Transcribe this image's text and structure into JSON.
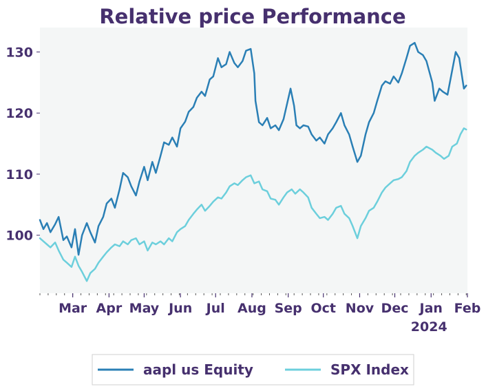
{
  "chart_data": {
    "type": "line",
    "title": "Relative price Performance",
    "xlabel": "",
    "ylabel": "",
    "x_range": [
      "2023-02-01",
      "2024-02-01"
    ],
    "ylim": [
      90.5,
      134
    ],
    "y_ticks": [
      100,
      110,
      120,
      130
    ],
    "x_ticks": [
      {
        "date": "2023-03-01",
        "label": "Mar",
        "sublabel": ""
      },
      {
        "date": "2023-04-01",
        "label": "Apr",
        "sublabel": ""
      },
      {
        "date": "2023-05-01",
        "label": "May",
        "sublabel": ""
      },
      {
        "date": "2023-06-01",
        "label": "Jun",
        "sublabel": ""
      },
      {
        "date": "2023-07-01",
        "label": "Jul",
        "sublabel": ""
      },
      {
        "date": "2023-08-01",
        "label": "Aug",
        "sublabel": ""
      },
      {
        "date": "2023-09-01",
        "label": "Sep",
        "sublabel": ""
      },
      {
        "date": "2023-10-01",
        "label": "Oct",
        "sublabel": ""
      },
      {
        "date": "2023-11-01",
        "label": "Nov",
        "sublabel": ""
      },
      {
        "date": "2023-12-01",
        "label": "Dec",
        "sublabel": ""
      },
      {
        "date": "2024-01-01",
        "label": "Jan",
        "sublabel": "2024"
      },
      {
        "date": "2024-02-01",
        "label": "Feb",
        "sublabel": ""
      }
    ],
    "grid": false,
    "legend_position": "bottom-center",
    "background": "#f4f6f6",
    "series": [
      {
        "name": "aapl us Equity",
        "color": "#2a7fb5",
        "points": [
          [
            "2023-02-01",
            102.5
          ],
          [
            "2023-02-04",
            101.0
          ],
          [
            "2023-02-07",
            102.0
          ],
          [
            "2023-02-10",
            100.5
          ],
          [
            "2023-02-14",
            101.8
          ],
          [
            "2023-02-17",
            103.0
          ],
          [
            "2023-02-21",
            99.2
          ],
          [
            "2023-02-24",
            99.8
          ],
          [
            "2023-02-28",
            98.0
          ],
          [
            "2023-03-03",
            101.0
          ],
          [
            "2023-03-06",
            96.8
          ],
          [
            "2023-03-09",
            100.0
          ],
          [
            "2023-03-13",
            102.0
          ],
          [
            "2023-03-16",
            100.5
          ],
          [
            "2023-03-20",
            98.8
          ],
          [
            "2023-03-23",
            101.5
          ],
          [
            "2023-03-27",
            103.0
          ],
          [
            "2023-03-30",
            105.2
          ],
          [
            "2023-04-03",
            106.0
          ],
          [
            "2023-04-06",
            104.5
          ],
          [
            "2023-04-10",
            107.5
          ],
          [
            "2023-04-13",
            110.2
          ],
          [
            "2023-04-17",
            109.5
          ],
          [
            "2023-04-20",
            108.0
          ],
          [
            "2023-04-24",
            106.5
          ],
          [
            "2023-04-27",
            108.8
          ],
          [
            "2023-05-01",
            111.2
          ],
          [
            "2023-05-04",
            109.0
          ],
          [
            "2023-05-08",
            112.0
          ],
          [
            "2023-05-11",
            110.2
          ],
          [
            "2023-05-15",
            113.0
          ],
          [
            "2023-05-18",
            115.2
          ],
          [
            "2023-05-22",
            114.8
          ],
          [
            "2023-05-25",
            116.0
          ],
          [
            "2023-05-29",
            114.5
          ],
          [
            "2023-06-01",
            117.5
          ],
          [
            "2023-06-05",
            118.6
          ],
          [
            "2023-06-08",
            120.2
          ],
          [
            "2023-06-12",
            121.0
          ],
          [
            "2023-06-15",
            122.5
          ],
          [
            "2023-06-19",
            123.5
          ],
          [
            "2023-06-22",
            122.8
          ],
          [
            "2023-06-26",
            125.5
          ],
          [
            "2023-06-29",
            126.0
          ],
          [
            "2023-07-03",
            129.0
          ],
          [
            "2023-07-06",
            127.5
          ],
          [
            "2023-07-10",
            128.0
          ],
          [
            "2023-07-13",
            130.0
          ],
          [
            "2023-07-17",
            128.2
          ],
          [
            "2023-07-20",
            127.5
          ],
          [
            "2023-07-24",
            128.5
          ],
          [
            "2023-07-27",
            130.2
          ],
          [
            "2023-07-31",
            130.5
          ],
          [
            "2023-08-03",
            126.5
          ],
          [
            "2023-08-04",
            122.0
          ],
          [
            "2023-08-07",
            118.5
          ],
          [
            "2023-08-10",
            118.0
          ],
          [
            "2023-08-14",
            119.2
          ],
          [
            "2023-08-17",
            117.5
          ],
          [
            "2023-08-21",
            118.0
          ],
          [
            "2023-08-24",
            117.2
          ],
          [
            "2023-08-28",
            119.0
          ],
          [
            "2023-08-31",
            121.5
          ],
          [
            "2023-09-03",
            124.0
          ],
          [
            "2023-09-06",
            121.2
          ],
          [
            "2023-09-08",
            118.0
          ],
          [
            "2023-09-11",
            117.5
          ],
          [
            "2023-09-14",
            118.0
          ],
          [
            "2023-09-18",
            117.8
          ],
          [
            "2023-09-21",
            116.5
          ],
          [
            "2023-09-25",
            115.5
          ],
          [
            "2023-09-28",
            116.0
          ],
          [
            "2023-10-02",
            115.0
          ],
          [
            "2023-10-05",
            116.5
          ],
          [
            "2023-10-09",
            117.5
          ],
          [
            "2023-10-12",
            118.5
          ],
          [
            "2023-10-16",
            120.0
          ],
          [
            "2023-10-19",
            118.0
          ],
          [
            "2023-10-23",
            116.5
          ],
          [
            "2023-10-26",
            114.5
          ],
          [
            "2023-10-30",
            112.0
          ],
          [
            "2023-11-02",
            113.0
          ],
          [
            "2023-11-06",
            116.5
          ],
          [
            "2023-11-09",
            118.5
          ],
          [
            "2023-11-13",
            120.0
          ],
          [
            "2023-11-16",
            122.0
          ],
          [
            "2023-11-20",
            124.5
          ],
          [
            "2023-11-23",
            125.2
          ],
          [
            "2023-11-27",
            124.8
          ],
          [
            "2023-11-30",
            126.0
          ],
          [
            "2023-12-04",
            125.0
          ],
          [
            "2023-12-07",
            126.5
          ],
          [
            "2023-12-11",
            129.0
          ],
          [
            "2023-12-14",
            131.0
          ],
          [
            "2023-12-18",
            131.5
          ],
          [
            "2023-12-21",
            130.0
          ],
          [
            "2023-12-25",
            129.5
          ],
          [
            "2023-12-28",
            128.5
          ],
          [
            "2024-01-02",
            125.0
          ],
          [
            "2024-01-04",
            122.0
          ],
          [
            "2024-01-08",
            124.0
          ],
          [
            "2024-01-11",
            123.5
          ],
          [
            "2024-01-15",
            123.0
          ],
          [
            "2024-01-18",
            126.0
          ],
          [
            "2024-01-22",
            130.0
          ],
          [
            "2024-01-25",
            129.0
          ],
          [
            "2024-01-29",
            124.0
          ],
          [
            "2024-01-31",
            124.5
          ]
        ]
      },
      {
        "name": "SPX Index",
        "color": "#6ccfdc",
        "points": [
          [
            "2023-02-01",
            99.5
          ],
          [
            "2023-02-04",
            99.0
          ],
          [
            "2023-02-07",
            98.5
          ],
          [
            "2023-02-10",
            98.0
          ],
          [
            "2023-02-14",
            98.8
          ],
          [
            "2023-02-17",
            97.5
          ],
          [
            "2023-02-21",
            96.0
          ],
          [
            "2023-02-24",
            95.5
          ],
          [
            "2023-02-28",
            94.8
          ],
          [
            "2023-03-03",
            96.5
          ],
          [
            "2023-03-06",
            95.0
          ],
          [
            "2023-03-09",
            94.0
          ],
          [
            "2023-03-13",
            92.5
          ],
          [
            "2023-03-16",
            93.8
          ],
          [
            "2023-03-20",
            94.5
          ],
          [
            "2023-03-23",
            95.5
          ],
          [
            "2023-03-27",
            96.5
          ],
          [
            "2023-03-30",
            97.2
          ],
          [
            "2023-04-03",
            98.0
          ],
          [
            "2023-04-06",
            98.5
          ],
          [
            "2023-04-10",
            98.2
          ],
          [
            "2023-04-13",
            99.0
          ],
          [
            "2023-04-17",
            98.5
          ],
          [
            "2023-04-20",
            99.2
          ],
          [
            "2023-04-24",
            99.5
          ],
          [
            "2023-04-27",
            98.5
          ],
          [
            "2023-05-01",
            99.0
          ],
          [
            "2023-05-04",
            97.5
          ],
          [
            "2023-05-08",
            98.8
          ],
          [
            "2023-05-11",
            98.5
          ],
          [
            "2023-05-15",
            99.0
          ],
          [
            "2023-05-18",
            98.5
          ],
          [
            "2023-05-22",
            99.5
          ],
          [
            "2023-05-25",
            99.0
          ],
          [
            "2023-05-29",
            100.5
          ],
          [
            "2023-06-01",
            101.0
          ],
          [
            "2023-06-05",
            101.5
          ],
          [
            "2023-06-08",
            102.5
          ],
          [
            "2023-06-12",
            103.5
          ],
          [
            "2023-06-15",
            104.2
          ],
          [
            "2023-06-19",
            105.0
          ],
          [
            "2023-06-22",
            104.0
          ],
          [
            "2023-06-26",
            104.8
          ],
          [
            "2023-06-29",
            105.5
          ],
          [
            "2023-07-03",
            106.2
          ],
          [
            "2023-07-06",
            106.0
          ],
          [
            "2023-07-10",
            107.0
          ],
          [
            "2023-07-13",
            108.0
          ],
          [
            "2023-07-17",
            108.5
          ],
          [
            "2023-07-20",
            108.2
          ],
          [
            "2023-07-24",
            109.0
          ],
          [
            "2023-07-27",
            109.5
          ],
          [
            "2023-07-31",
            109.8
          ],
          [
            "2023-08-03",
            108.5
          ],
          [
            "2023-08-07",
            108.8
          ],
          [
            "2023-08-10",
            107.5
          ],
          [
            "2023-08-14",
            107.2
          ],
          [
            "2023-08-17",
            106.0
          ],
          [
            "2023-08-21",
            105.8
          ],
          [
            "2023-08-24",
            105.0
          ],
          [
            "2023-08-28",
            106.2
          ],
          [
            "2023-08-31",
            107.0
          ],
          [
            "2023-09-04",
            107.5
          ],
          [
            "2023-09-07",
            106.8
          ],
          [
            "2023-09-11",
            107.5
          ],
          [
            "2023-09-14",
            107.0
          ],
          [
            "2023-09-18",
            106.2
          ],
          [
            "2023-09-21",
            104.5
          ],
          [
            "2023-09-25",
            103.5
          ],
          [
            "2023-09-28",
            102.8
          ],
          [
            "2023-10-02",
            103.0
          ],
          [
            "2023-10-05",
            102.5
          ],
          [
            "2023-10-09",
            103.5
          ],
          [
            "2023-10-12",
            104.5
          ],
          [
            "2023-10-16",
            104.8
          ],
          [
            "2023-10-19",
            103.5
          ],
          [
            "2023-10-23",
            102.8
          ],
          [
            "2023-10-26",
            101.5
          ],
          [
            "2023-10-30",
            99.5
          ],
          [
            "2023-11-02",
            101.5
          ],
          [
            "2023-11-06",
            102.8
          ],
          [
            "2023-11-09",
            104.0
          ],
          [
            "2023-11-13",
            104.5
          ],
          [
            "2023-11-16",
            105.5
          ],
          [
            "2023-11-20",
            107.0
          ],
          [
            "2023-11-23",
            107.8
          ],
          [
            "2023-11-27",
            108.5
          ],
          [
            "2023-11-30",
            109.0
          ],
          [
            "2023-12-04",
            109.2
          ],
          [
            "2023-12-07",
            109.5
          ],
          [
            "2023-12-11",
            110.5
          ],
          [
            "2023-12-14",
            112.0
          ],
          [
            "2023-12-18",
            113.0
          ],
          [
            "2023-12-21",
            113.5
          ],
          [
            "2023-12-25",
            114.0
          ],
          [
            "2023-12-28",
            114.5
          ],
          [
            "2024-01-02",
            114.0
          ],
          [
            "2024-01-05",
            113.5
          ],
          [
            "2024-01-09",
            113.0
          ],
          [
            "2024-01-12",
            112.5
          ],
          [
            "2024-01-16",
            113.0
          ],
          [
            "2024-01-19",
            114.5
          ],
          [
            "2024-01-23",
            115.0
          ],
          [
            "2024-01-26",
            116.5
          ],
          [
            "2024-01-29",
            117.5
          ],
          [
            "2024-01-31",
            117.3
          ]
        ]
      }
    ]
  }
}
